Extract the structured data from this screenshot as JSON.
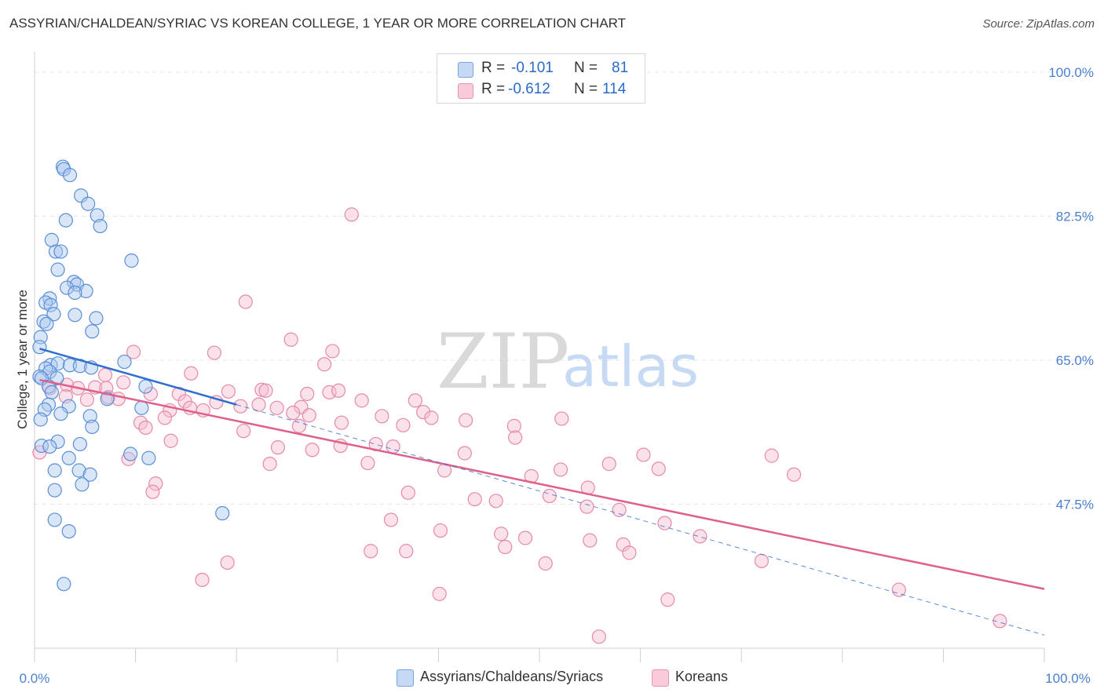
{
  "title": "ASSYRIAN/CHALDEAN/SYRIAC VS KOREAN COLLEGE, 1 YEAR OR MORE CORRELATION CHART",
  "source": "Source: ZipAtlas.com",
  "watermark": {
    "zip": "ZIP",
    "atlas": "atlas"
  },
  "colors": {
    "blue_fill": "#aac8f0",
    "blue_stroke": "#5b8fd6",
    "blue_line": "#2f6fd0",
    "pink_fill": "#f6bcd0",
    "pink_stroke": "#e68aa8",
    "pink_line": "#e0608d",
    "tick_text": "#4a7fcf",
    "grid": "#e6e6e6"
  },
  "legend": {
    "rows": [
      {
        "r_label": "R =",
        "r_value": "-0.101",
        "n_label": "N =",
        "n_value": "81"
      },
      {
        "r_label": "R =",
        "r_value": "-0.612",
        "n_label": "N =",
        "n_value": "114"
      }
    ]
  },
  "bottom_legend": [
    "Assyrians/Chaldeans/Syriacs",
    "Koreans"
  ],
  "chart_data": {
    "type": "scatter",
    "title": "ASSYRIAN/CHALDEAN/SYRIAC VS KOREAN COLLEGE, 1 YEAR OR MORE CORRELATION CHART",
    "xlabel": "",
    "ylabel": "College, 1 year or more",
    "xlim": [
      0,
      100
    ],
    "ylim": [
      30,
      102
    ],
    "y_ticks": [
      47.5,
      65.0,
      82.5,
      100.0
    ],
    "y_tick_labels": [
      "47.5%",
      "65.0%",
      "82.5%",
      "100.0%"
    ],
    "x_tick_labels": [
      "0.0%",
      "100.0%"
    ],
    "series": [
      {
        "name": "Assyrians/Chaldeans/Syriacs",
        "color": "#aac8f0",
        "trend": {
          "x": [
            0.5,
            20
          ],
          "y": [
            66.4,
            59.6
          ]
        },
        "trend_extension": {
          "x": [
            20,
            100
          ],
          "y": [
            59.6,
            31.6
          ]
        },
        "points": [
          [
            2.8,
            88.5
          ],
          [
            2.9,
            88.2
          ],
          [
            3.5,
            87.5
          ],
          [
            4.6,
            85.0
          ],
          [
            5.3,
            84.0
          ],
          [
            6.2,
            82.6
          ],
          [
            3.1,
            82.0
          ],
          [
            6.5,
            81.3
          ],
          [
            1.7,
            79.6
          ],
          [
            2.1,
            78.2
          ],
          [
            2.6,
            78.2
          ],
          [
            9.6,
            77.1
          ],
          [
            2.3,
            76.0
          ],
          [
            3.9,
            74.5
          ],
          [
            4.2,
            74.2
          ],
          [
            3.2,
            73.8
          ],
          [
            5.1,
            73.4
          ],
          [
            4.0,
            73.2
          ],
          [
            1.5,
            72.5
          ],
          [
            1.1,
            72.0
          ],
          [
            1.6,
            71.7
          ],
          [
            1.9,
            70.6
          ],
          [
            4.0,
            70.5
          ],
          [
            6.1,
            70.1
          ],
          [
            0.9,
            69.7
          ],
          [
            1.2,
            69.4
          ],
          [
            5.7,
            68.5
          ],
          [
            0.6,
            67.8
          ],
          [
            0.5,
            66.6
          ],
          [
            8.9,
            64.8
          ],
          [
            1.6,
            64.4
          ],
          [
            2.3,
            64.6
          ],
          [
            3.5,
            64.4
          ],
          [
            4.5,
            64.3
          ],
          [
            5.6,
            64.1
          ],
          [
            1.1,
            64.0
          ],
          [
            1.5,
            63.6
          ],
          [
            0.5,
            63.0
          ],
          [
            0.7,
            62.8
          ],
          [
            2.2,
            62.8
          ],
          [
            1.4,
            61.8
          ],
          [
            11.0,
            61.8
          ],
          [
            1.7,
            61.1
          ],
          [
            7.2,
            60.3
          ],
          [
            1.4,
            59.6
          ],
          [
            3.4,
            59.4
          ],
          [
            10.6,
            59.2
          ],
          [
            1.0,
            59.0
          ],
          [
            2.6,
            58.5
          ],
          [
            5.5,
            58.2
          ],
          [
            0.6,
            57.8
          ],
          [
            5.7,
            56.9
          ],
          [
            2.3,
            55.1
          ],
          [
            4.5,
            54.8
          ],
          [
            0.7,
            54.6
          ],
          [
            1.5,
            54.5
          ],
          [
            9.5,
            53.6
          ],
          [
            3.4,
            53.1
          ],
          [
            11.3,
            53.1
          ],
          [
            2.0,
            51.6
          ],
          [
            4.4,
            51.6
          ],
          [
            5.5,
            51.1
          ],
          [
            4.7,
            49.9
          ],
          [
            2.0,
            49.2
          ],
          [
            18.6,
            46.4
          ],
          [
            2.0,
            45.6
          ],
          [
            3.4,
            44.2
          ],
          [
            2.9,
            37.8
          ]
        ]
      },
      {
        "name": "Koreans",
        "color": "#f6bcd0",
        "trend": {
          "x": [
            0.5,
            100
          ],
          "y": [
            62.6,
            37.2
          ]
        },
        "points": [
          [
            0.5,
            53.8
          ],
          [
            31.4,
            82.7
          ],
          [
            20.9,
            72.1
          ],
          [
            25.4,
            67.5
          ],
          [
            17.8,
            65.9
          ],
          [
            9.8,
            66.0
          ],
          [
            29.5,
            66.1
          ],
          [
            28.7,
            64.5
          ],
          [
            15.5,
            63.4
          ],
          [
            7.0,
            63.2
          ],
          [
            8.8,
            62.3
          ],
          [
            3.2,
            62.0
          ],
          [
            6.0,
            61.7
          ],
          [
            4.3,
            61.6
          ],
          [
            7.1,
            61.6
          ],
          [
            1.5,
            61.6
          ],
          [
            22.5,
            61.4
          ],
          [
            22.9,
            61.3
          ],
          [
            19.2,
            61.2
          ],
          [
            29.2,
            61.1
          ],
          [
            30.1,
            61.3
          ],
          [
            27.0,
            60.9
          ],
          [
            11.5,
            60.9
          ],
          [
            14.3,
            60.9
          ],
          [
            3.1,
            60.6
          ],
          [
            7.3,
            60.5
          ],
          [
            8.3,
            60.3
          ],
          [
            5.2,
            60.2
          ],
          [
            14.9,
            60.0
          ],
          [
            18.0,
            59.9
          ],
          [
            22.2,
            59.6
          ],
          [
            32.4,
            60.1
          ],
          [
            37.7,
            60.1
          ],
          [
            20.4,
            59.4
          ],
          [
            24.0,
            59.2
          ],
          [
            26.4,
            59.3
          ],
          [
            15.4,
            59.2
          ],
          [
            13.4,
            58.9
          ],
          [
            16.7,
            58.9
          ],
          [
            38.5,
            58.7
          ],
          [
            25.6,
            58.6
          ],
          [
            27.2,
            58.3
          ],
          [
            34.4,
            58.2
          ],
          [
            39.3,
            58.0
          ],
          [
            12.9,
            58.0
          ],
          [
            30.4,
            57.4
          ],
          [
            10.5,
            57.4
          ],
          [
            11.0,
            56.8
          ],
          [
            36.5,
            57.1
          ],
          [
            47.5,
            57.0
          ],
          [
            26.2,
            57.0
          ],
          [
            52.2,
            57.9
          ],
          [
            42.7,
            57.7
          ],
          [
            20.7,
            56.4
          ],
          [
            47.6,
            55.6
          ],
          [
            13.5,
            55.2
          ],
          [
            33.8,
            54.8
          ],
          [
            35.5,
            54.5
          ],
          [
            30.3,
            54.6
          ],
          [
            24.1,
            54.4
          ],
          [
            27.5,
            54.1
          ],
          [
            42.6,
            53.7
          ],
          [
            9.3,
            53.0
          ],
          [
            23.3,
            52.4
          ],
          [
            33.0,
            52.5
          ],
          [
            56.9,
            52.4
          ],
          [
            60.3,
            53.5
          ],
          [
            73.0,
            53.4
          ],
          [
            61.8,
            51.8
          ],
          [
            52.1,
            51.7
          ],
          [
            40.6,
            51.6
          ],
          [
            75.2,
            51.1
          ],
          [
            49.2,
            50.9
          ],
          [
            12.0,
            50.0
          ],
          [
            54.8,
            49.5
          ],
          [
            11.7,
            49.0
          ],
          [
            37.0,
            48.9
          ],
          [
            43.6,
            48.1
          ],
          [
            45.7,
            47.9
          ],
          [
            51.0,
            48.5
          ],
          [
            54.7,
            47.2
          ],
          [
            57.9,
            46.8
          ],
          [
            35.3,
            45.6
          ],
          [
            62.4,
            45.2
          ],
          [
            40.2,
            44.3
          ],
          [
            46.2,
            43.9
          ],
          [
            48.6,
            43.4
          ],
          [
            55.0,
            43.1
          ],
          [
            65.9,
            43.6
          ],
          [
            46.6,
            42.3
          ],
          [
            58.3,
            42.6
          ],
          [
            33.3,
            41.8
          ],
          [
            36.8,
            41.8
          ],
          [
            58.9,
            41.6
          ],
          [
            19.1,
            40.4
          ],
          [
            50.6,
            40.3
          ],
          [
            72.0,
            40.6
          ],
          [
            16.6,
            38.3
          ],
          [
            40.1,
            36.6
          ],
          [
            62.7,
            35.9
          ],
          [
            85.6,
            37.1
          ],
          [
            95.6,
            33.3
          ],
          [
            55.9,
            31.4
          ]
        ]
      }
    ]
  }
}
